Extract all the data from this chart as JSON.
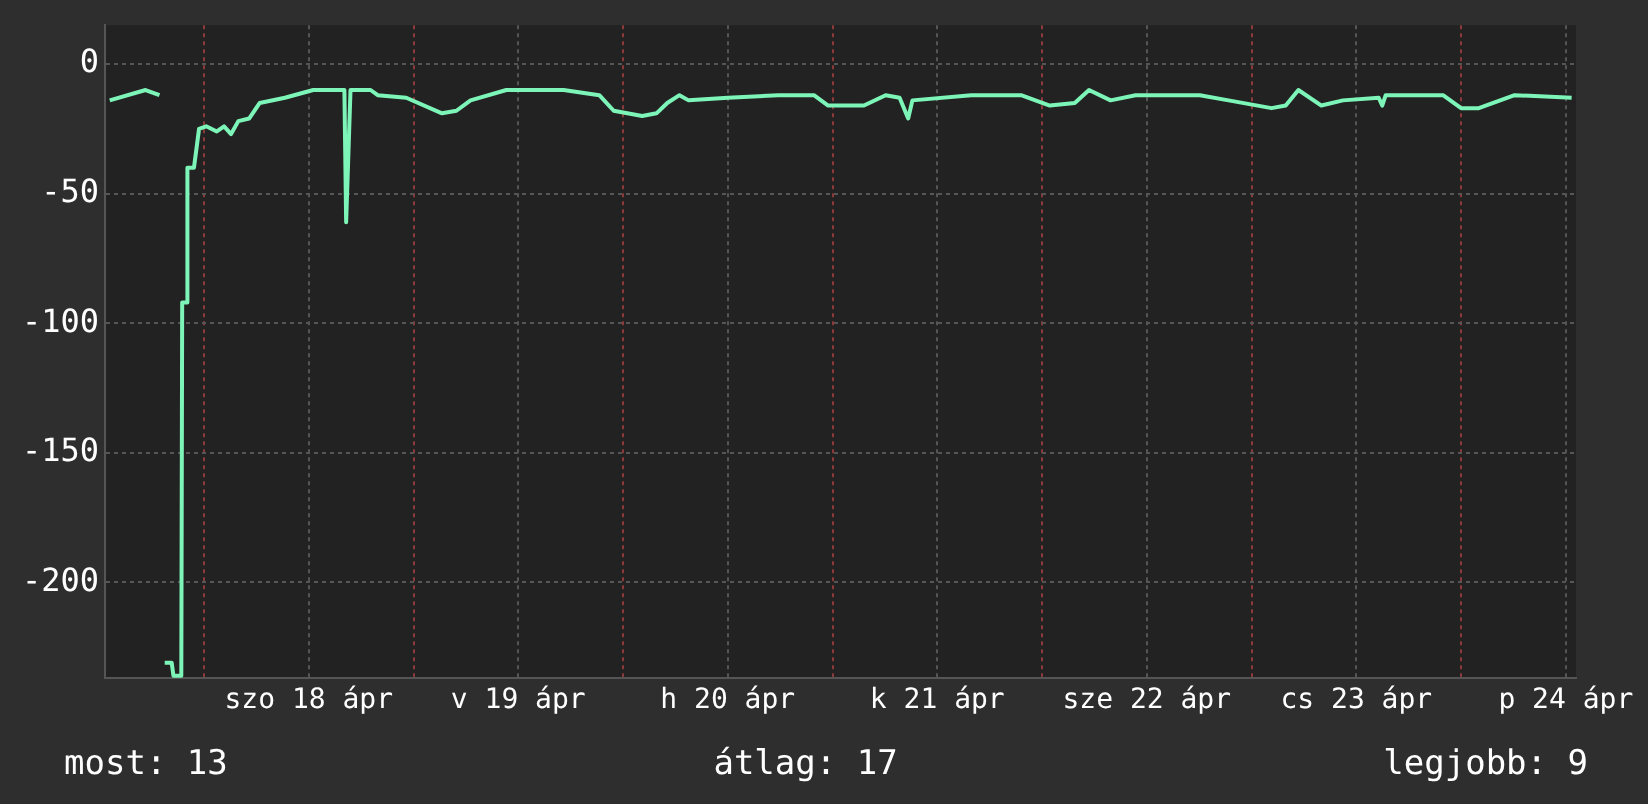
{
  "chart_data": {
    "type": "line",
    "x": [
      "--04-17T13:12",
      "--04-17T17:18",
      "--04-17T18:54",
      "--04-17T19:10",
      "--04-17T19:30",
      "--04-17T20:18",
      "--04-17T20:30",
      "--04-17T21:24",
      "--04-17T21:30",
      "--04-17T22:00",
      "--04-17T22:06",
      "--04-17T22:51",
      "--04-17T23:26",
      "--04-18T00:15",
      "--04-18T01:28",
      "--04-18T02:18",
      "--04-18T03:06",
      "--04-18T03:56",
      "--04-18T05:10",
      "--04-18T06:23",
      "--04-18T09:16",
      "--04-18T12:31",
      "--04-18T15:48",
      "--04-18T16:05",
      "--04-18T16:17",
      "--04-18T16:47",
      "--04-18T19:05",
      "--04-18T19:54",
      "--04-18T23:10",
      "--04-19T03:16",
      "--04-19T04:55",
      "--04-19T06:32",
      "--04-19T10:38",
      "--04-19T13:06",
      "--04-19T17:12",
      "--04-19T21:17",
      "--04-19T22:56",
      "--04-20T02:12",
      "--04-20T03:50",
      "--04-20T05:04",
      "--04-20T06:28",
      "--04-20T07:31",
      "--04-20T12:02",
      "--04-20T17:46",
      "--04-20T21:52",
      "--04-20T23:30",
      "--04-21T02:00",
      "--04-21T03:36",
      "--04-21T06:05",
      "--04-21T07:41",
      "--04-21T08:40",
      "--04-21T09:09",
      "--04-21T15:53",
      "--04-21T21:36",
      "--04-22T00:53",
      "--04-22T03:45",
      "--04-22T05:23",
      "--04-22T07:51",
      "--04-22T10:43",
      "--04-22T18:05",
      "--04-22T21:22",
      "--04-23T02:17",
      "--04-23T03:55",
      "--04-23T05:22",
      "--04-23T08:00",
      "--04-23T10:28",
      "--04-23T14:34",
      "--04-23T14:58",
      "--04-23T15:22",
      "--04-23T21:56",
      "--04-24T00:00",
      "--04-24T02:02",
      "--04-24T06:08",
      "--04-24T12:40"
    ],
    "series": [
      {
        "color": "#7df5b8",
        "values": [
          -14,
          -10,
          -12,
          null,
          -231,
          -231,
          -236,
          -236,
          -92,
          -92,
          -40,
          -40,
          -25,
          -24,
          -26,
          -24,
          -27,
          -22,
          -21,
          -15,
          -13,
          -10,
          -10,
          -10,
          -61,
          -10,
          -10,
          -12,
          -13,
          -19,
          -18,
          -14,
          -10,
          -10,
          -10,
          -12,
          -18,
          -20,
          -19,
          -15,
          -12,
          -14,
          -13,
          -12,
          -12,
          -16,
          -16,
          -16,
          -12,
          -13,
          -21,
          -14,
          -12,
          -12,
          -16,
          -15,
          -10,
          -14,
          -12,
          -12,
          -14,
          -17,
          -16,
          -10,
          -16,
          -14,
          -13,
          -16,
          -12,
          -12,
          -17,
          -17,
          -12,
          -13
        ]
      }
    ],
    "xlim": [
      "--04-17T12:40",
      "--04-24T13:10"
    ],
    "xticks": [
      {
        "value": "--04-18T00:00",
        "label": null
      },
      {
        "value": "--04-18T12:00",
        "label": "szo 18 ápr"
      },
      {
        "value": "--04-19T00:00",
        "label": null
      },
      {
        "value": "--04-19T12:00",
        "label": "v 19 ápr"
      },
      {
        "value": "--04-20T00:00",
        "label": null
      },
      {
        "value": "--04-20T12:00",
        "label": "h 20 ápr"
      },
      {
        "value": "--04-21T00:00",
        "label": null
      },
      {
        "value": "--04-21T12:00",
        "label": "k 21 ápr"
      },
      {
        "value": "--04-22T00:00",
        "label": null
      },
      {
        "value": "--04-22T12:00",
        "label": "sze 22 ápr"
      },
      {
        "value": "--04-23T00:00",
        "label": null
      },
      {
        "value": "--04-23T12:00",
        "label": "cs 23 ápr"
      },
      {
        "value": "--04-24T00:00",
        "label": null
      },
      {
        "value": "--04-24T12:00",
        "label": "p 24 ápr"
      }
    ],
    "ylim": [
      -237,
      15
    ],
    "yticks": [
      -200,
      -150,
      -100,
      -50,
      0
    ],
    "grid": true,
    "legend": false,
    "marker": "none",
    "line_style": "solid",
    "annotations": [
      "most: 13",
      "átlag: 17",
      "legjobb: 9"
    ]
  }
}
